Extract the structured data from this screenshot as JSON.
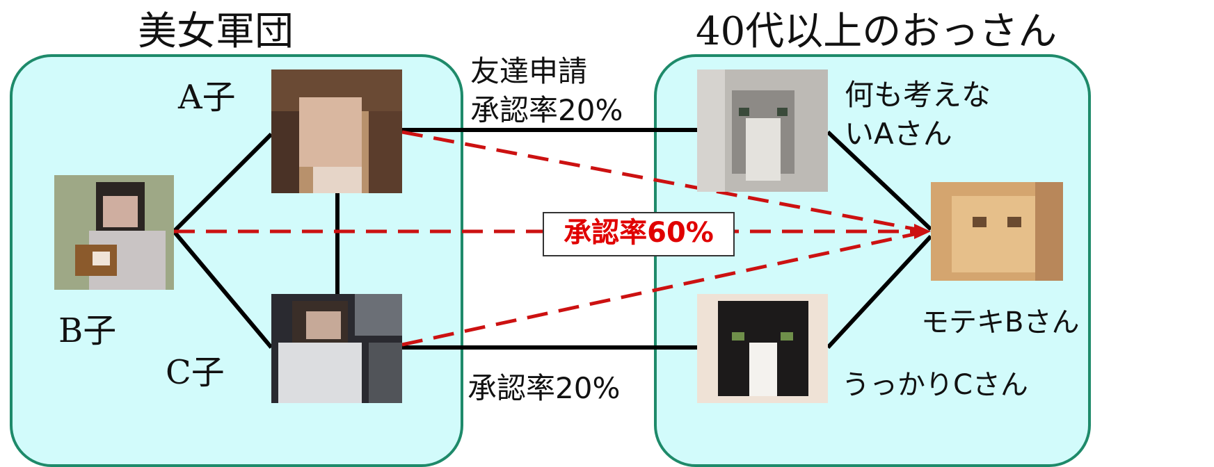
{
  "groups": {
    "left_title": "美女軍団",
    "right_title": "40代以上のおっさん"
  },
  "people": {
    "a_ko": "A子",
    "b_ko": "B子",
    "c_ko": "C子",
    "a_san_line1": "何も考えな",
    "a_san_line2": "いAさん",
    "b_san": "モテキBさん",
    "c_san": "うっかりCさん"
  },
  "links": {
    "top_label_line1": "友達申請",
    "top_label_line2": "承認率20%",
    "bottom_label": "承認率20%",
    "center_callout": "承認率60%"
  },
  "colors": {
    "box_fill": "#d2fbfb",
    "box_border": "#1e8a6a",
    "solid_edge": "#000000",
    "dashed_edge": "#cc1111",
    "callout_text": "#e00000"
  }
}
